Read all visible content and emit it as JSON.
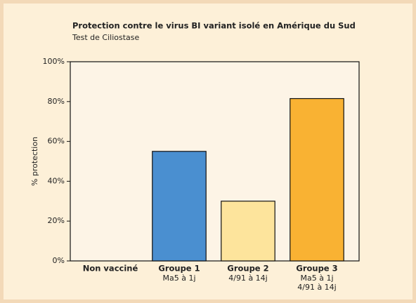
{
  "chart_data": {
    "type": "bar",
    "title": "Protection contre le virus BI variant isolé en Amérique du Sud",
    "subtitle": "Test de Ciliostase",
    "y_label": "% protection",
    "categories": [
      "Non vacciné",
      "Groupe 1",
      "Groupe 2",
      "Groupe 3"
    ],
    "category_details": [
      [],
      [
        "Ma5 à 1j"
      ],
      [
        "4/91 à 14j"
      ],
      [
        "Ma5 à 1j",
        "4/91 à 14j"
      ]
    ],
    "values": [
      0,
      55,
      30,
      81.5
    ],
    "colors": [
      null,
      "#4a8fd0",
      "#fde49c",
      "#f9b233"
    ],
    "ylim": [
      0,
      100
    ],
    "yticks": [
      {
        "value": 0,
        "label": "0%"
      },
      {
        "value": 20,
        "label": "20%"
      },
      {
        "value": 40,
        "label": "40%"
      },
      {
        "value": 60,
        "label": "60%"
      },
      {
        "value": 80,
        "label": "80%"
      },
      {
        "value": 100,
        "label": "100%"
      }
    ]
  }
}
